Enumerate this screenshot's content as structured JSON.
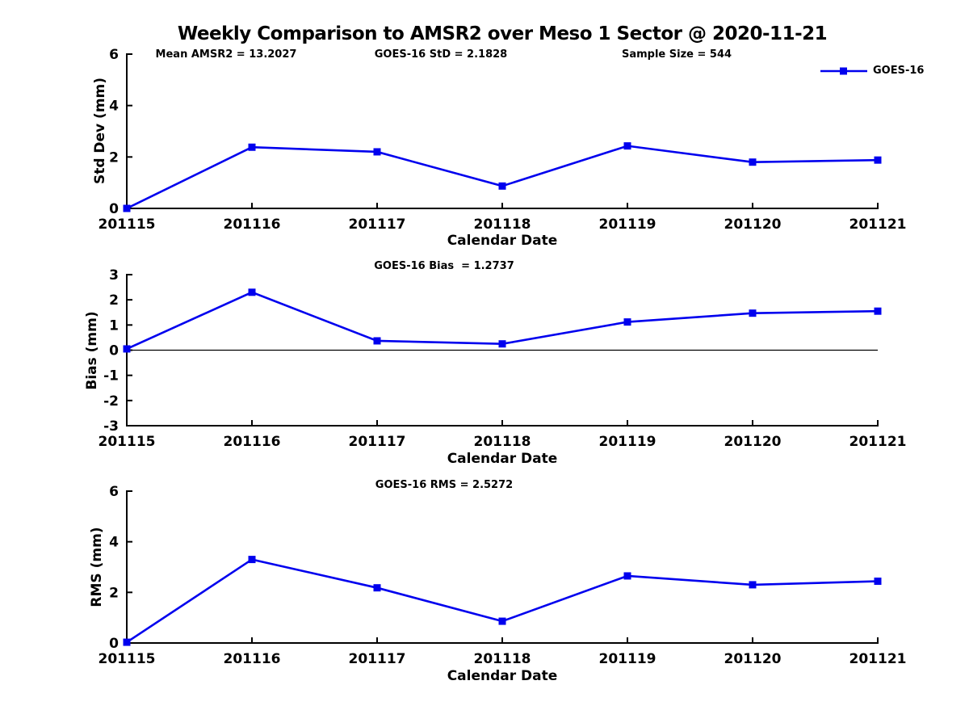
{
  "figure": {
    "title": "Weekly Comparison to AMSR2 over Meso 1 Sector @ 2020-11-21",
    "legend": {
      "label": "GOES-16"
    },
    "colors": {
      "line": "#0000EE",
      "axis": "#000000",
      "background": "#ffffff"
    }
  },
  "chart_data": [
    {
      "type": "line",
      "title": "",
      "annotations": [
        "Mean AMSR2 = 13.2027",
        "GOES-16 StD = 2.1828",
        "Sample Size = 544"
      ],
      "xlabel": "Calendar Date",
      "ylabel": "Std Dev (mm)",
      "categories": [
        "201115",
        "201116",
        "201117",
        "201118",
        "201119",
        "201120",
        "201121"
      ],
      "series": [
        {
          "name": "GOES-16",
          "values": [
            0.0,
            2.38,
            2.2,
            0.87,
            2.43,
            1.8,
            1.88
          ]
        }
      ],
      "ylim": [
        0,
        6
      ],
      "yticks": [
        0,
        2,
        4,
        6
      ],
      "grid": false,
      "legend_position": "top-right-outside",
      "marker": "square",
      "zero_line": false
    },
    {
      "type": "line",
      "title": "GOES-16 Bias  = 1.2737",
      "xlabel": "Calendar Date",
      "ylabel": "Bias (mm)",
      "categories": [
        "201115",
        "201116",
        "201117",
        "201118",
        "201119",
        "201120",
        "201121"
      ],
      "series": [
        {
          "name": "GOES-16",
          "values": [
            0.05,
            2.3,
            0.37,
            0.25,
            1.12,
            1.47,
            1.55
          ]
        }
      ],
      "ylim": [
        -3,
        3
      ],
      "yticks": [
        -3,
        -2,
        -1,
        0,
        1,
        2,
        3
      ],
      "grid": false,
      "marker": "square",
      "zero_line": true
    },
    {
      "type": "line",
      "title": "GOES-16 RMS = 2.5272",
      "xlabel": "Calendar Date",
      "ylabel": "RMS (mm)",
      "categories": [
        "201115",
        "201116",
        "201117",
        "201118",
        "201119",
        "201120",
        "201121"
      ],
      "series": [
        {
          "name": "GOES-16",
          "values": [
            0.03,
            3.3,
            2.18,
            0.86,
            2.65,
            2.3,
            2.44
          ]
        }
      ],
      "ylim": [
        0,
        6
      ],
      "yticks": [
        0,
        2,
        4,
        6
      ],
      "grid": false,
      "marker": "square",
      "zero_line": false
    }
  ]
}
